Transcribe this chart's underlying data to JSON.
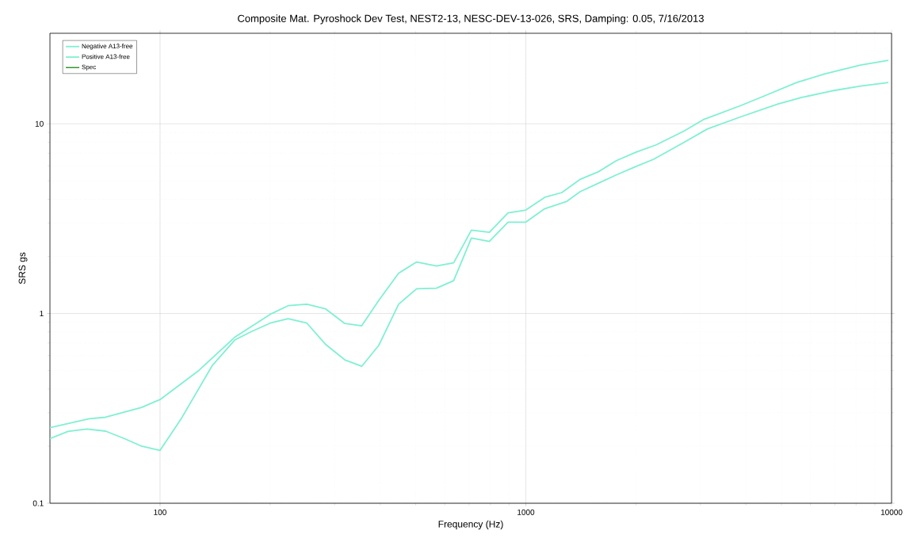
{
  "chart_data": {
    "type": "line",
    "title": "Composite Mat. Pyroshock Dev Test, NEST2-13, NESC-DEV-13-026, SRS, Damping: 0.05, 7/16/2013",
    "xlabel": "Frequency (Hz)",
    "ylabel": "SRS gs",
    "log": "xy",
    "grid": true,
    "legend": "top left",
    "marker": "none",
    "line_style": "solid",
    "xlim": [
      50,
      10000
    ],
    "ylim": [
      0.1,
      30
    ],
    "xticks": [
      100,
      1000,
      10000
    ],
    "yticks": [
      0.1,
      1,
      10
    ],
    "series": [
      {
        "name": "Negative A13-free",
        "color": "#7ff0d2",
        "x": [
          50,
          64,
          71,
          89,
          100,
          127,
          160,
          200,
          224,
          252,
          283,
          320,
          356,
          396,
          449,
          503,
          570,
          635,
          710,
          795,
          894,
          1000,
          1127,
          1254,
          1406,
          1577,
          1772,
          2005,
          2273,
          2710,
          3070,
          3880,
          4520,
          5500,
          6550,
          8220,
          9800
        ],
        "values": [
          0.25,
          0.279,
          0.284,
          0.32,
          0.352,
          0.497,
          0.75,
          0.99,
          1.1,
          1.12,
          1.06,
          0.886,
          0.862,
          1.17,
          1.63,
          1.87,
          1.78,
          1.85,
          2.75,
          2.68,
          3.39,
          3.51,
          4.1,
          4.34,
          5.09,
          5.58,
          6.41,
          7.1,
          7.75,
          9.17,
          10.56,
          12.5,
          14.1,
          16.5,
          18.3,
          20.4,
          21.6
        ]
      },
      {
        "name": "Positive A13-free",
        "color": "#7ff0d2",
        "x": [
          50,
          56,
          63,
          71,
          80,
          89,
          100,
          114,
          139,
          160,
          178,
          200,
          224,
          252,
          283,
          320,
          356,
          396,
          449,
          503,
          570,
          635,
          710,
          795,
          894,
          1000,
          1127,
          1290,
          1406,
          1593,
          1772,
          2005,
          2235,
          2710,
          3140,
          3880,
          4880,
          5710,
          6850,
          8220,
          9800
        ],
        "values": [
          0.219,
          0.239,
          0.246,
          0.24,
          0.219,
          0.2,
          0.19,
          0.277,
          0.533,
          0.725,
          0.804,
          0.89,
          0.94,
          0.89,
          0.69,
          0.57,
          0.527,
          0.678,
          1.12,
          1.35,
          1.36,
          1.49,
          2.5,
          2.4,
          3.03,
          3.03,
          3.57,
          3.89,
          4.38,
          4.9,
          5.39,
          5.97,
          6.5,
          8.0,
          9.4,
          10.9,
          12.7,
          13.8,
          14.9,
          15.8,
          16.5
        ]
      },
      {
        "name": "Spec",
        "color": "#008000"
      }
    ]
  }
}
